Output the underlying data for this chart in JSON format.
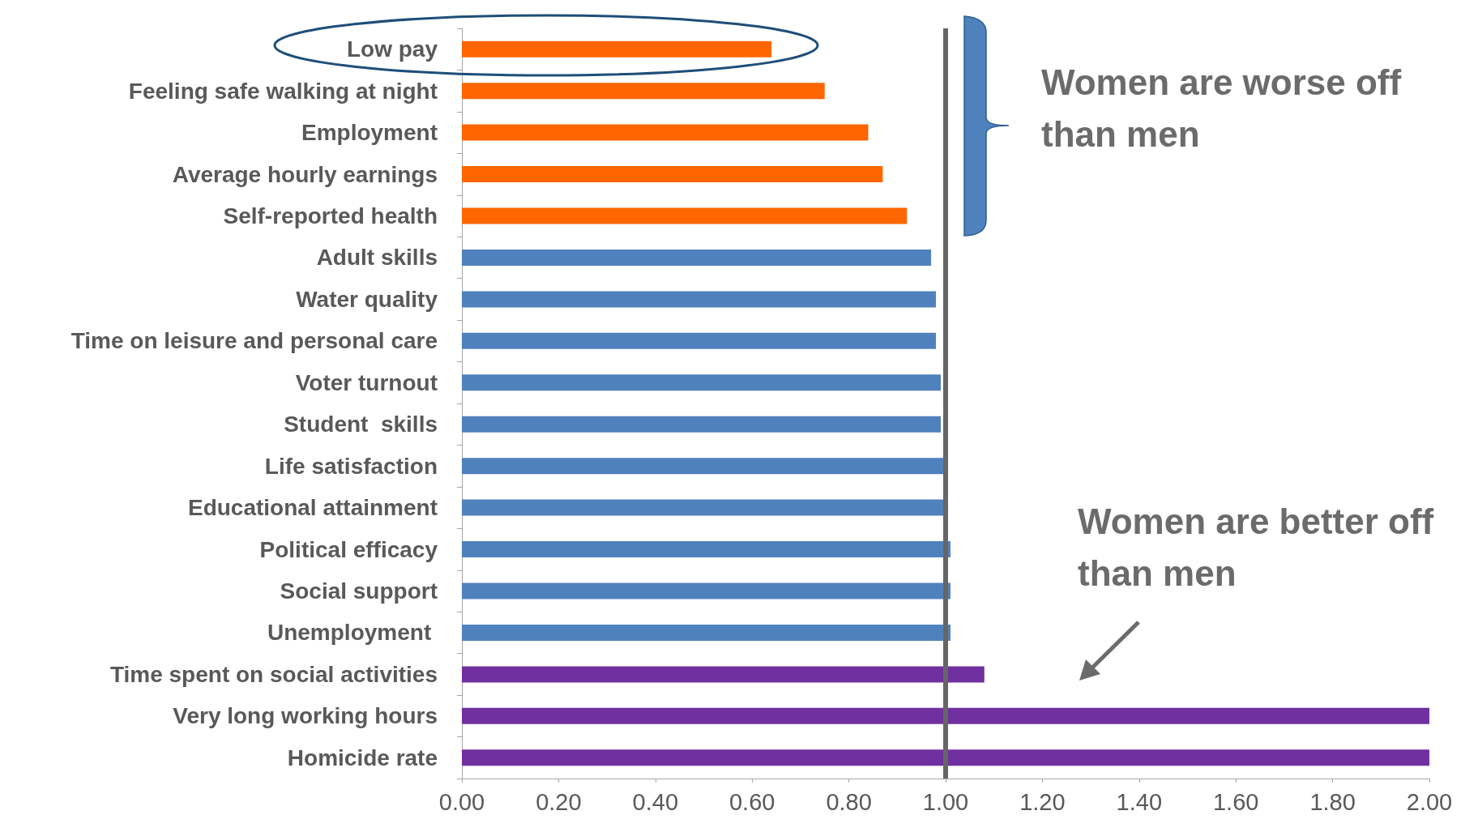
{
  "chart_data": {
    "type": "bar",
    "orientation": "horizontal",
    "categories": [
      "Low pay",
      "Feeling safe walking at night",
      "Employment",
      "Average hourly earnings",
      "Self-reported health",
      "Adult skills",
      "Water quality",
      "Time on leisure and personal care",
      "Voter turnout",
      "Student  skills",
      "Life satisfaction",
      "Educational attainment",
      "Political efficacy",
      "Social support",
      "Unemployment ",
      "Time spent on social activities",
      "Very long working hours",
      "Homicide rate"
    ],
    "values": [
      0.64,
      0.75,
      0.84,
      0.87,
      0.92,
      0.97,
      0.98,
      0.98,
      0.99,
      0.99,
      1.0,
      1.0,
      1.01,
      1.01,
      1.01,
      1.08,
      2.0,
      2.0
    ],
    "colors": [
      "#ff6600",
      "#ff6600",
      "#ff6600",
      "#ff6600",
      "#ff6600",
      "#4f81bd",
      "#4f81bd",
      "#4f81bd",
      "#4f81bd",
      "#4f81bd",
      "#4f81bd",
      "#4f81bd",
      "#4f81bd",
      "#4f81bd",
      "#4f81bd",
      "#7030a0",
      "#7030a0",
      "#7030a0"
    ],
    "xlim": [
      0,
      2
    ],
    "xticks": [
      {
        "value": 0,
        "label": "0.00"
      },
      {
        "value": 0.2,
        "label": "0.20"
      },
      {
        "value": 0.4,
        "label": "0.40"
      },
      {
        "value": 0.6,
        "label": "0.60"
      },
      {
        "value": 0.8,
        "label": "0.80"
      },
      {
        "value": 1,
        "label": "1.00"
      },
      {
        "value": 1.2,
        "label": "1.20"
      },
      {
        "value": 1.4,
        "label": "1.40"
      },
      {
        "value": 1.6,
        "label": "1.60"
      },
      {
        "value": 1.8,
        "label": "1.80"
      },
      {
        "value": 2,
        "label": "2.00"
      }
    ],
    "ref_lines": [
      {
        "axis": "x",
        "value": 1,
        "color": "#666666"
      }
    ],
    "annotations": [
      "Women are worse off than men",
      "Women are better off than men"
    ],
    "grid": false
  }
}
